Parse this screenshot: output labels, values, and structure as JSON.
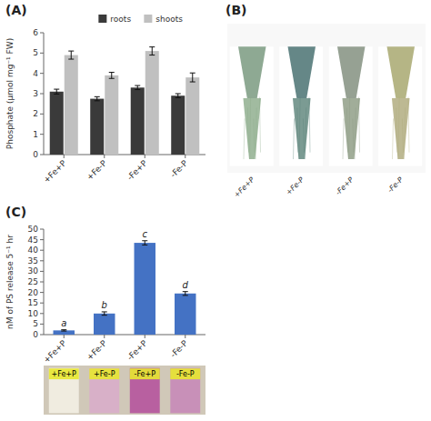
{
  "chart_data": [
    {
      "type": "bar",
      "title": "(A)",
      "categories": [
        "+Fe+P",
        "+Fe-P",
        "-Fe+P",
        "-Fe-P"
      ],
      "series": [
        {
          "name": "roots",
          "color": "#3a3a3a",
          "values": [
            3.1,
            2.75,
            3.3,
            2.9
          ],
          "errors": [
            0.12,
            0.1,
            0.1,
            0.1
          ]
        },
        {
          "name": "shoots",
          "color": "#c0c0c0",
          "values": [
            4.9,
            3.9,
            5.1,
            3.8
          ],
          "errors": [
            0.2,
            0.15,
            0.2,
            0.22
          ]
        }
      ],
      "y_label": "Phosphate (μmol mg⁻¹ FW)",
      "ylim": [
        0,
        6
      ],
      "yticks": [
        0,
        1,
        2,
        3,
        4,
        5,
        6
      ],
      "legend": "top",
      "grid": false
    },
    {
      "type": "illustration",
      "title": "(B)",
      "categories": [
        "+Fe+P",
        "+Fe-P",
        "-Fe+P",
        "-Fe-P"
      ]
    },
    {
      "type": "bar",
      "title": "(C)",
      "categories": [
        "+Fe+P",
        "+Fe-P",
        "-Fe+P",
        "-Fe-P"
      ],
      "values": [
        2.0,
        10.0,
        43.5,
        19.5
      ],
      "errors": [
        0.3,
        0.8,
        1.0,
        0.9
      ],
      "annotations": [
        "a",
        "b",
        "c",
        "d"
      ],
      "color": "#4472c4",
      "y_label": "nM of PS release 5⁻¹ hr",
      "ylim": [
        0,
        50
      ],
      "yticks": [
        0,
        5,
        10,
        15,
        20,
        25,
        30,
        35,
        40,
        45,
        50
      ],
      "grid": false
    },
    {
      "type": "illustration",
      "categories": [
        "+Fe+P",
        "+Fe-P",
        "-Fe+P",
        "-Fe-P"
      ],
      "colors": [
        "#f0ece0",
        "#d8b0c8",
        "#b860a0",
        "#c890b8"
      ]
    }
  ]
}
